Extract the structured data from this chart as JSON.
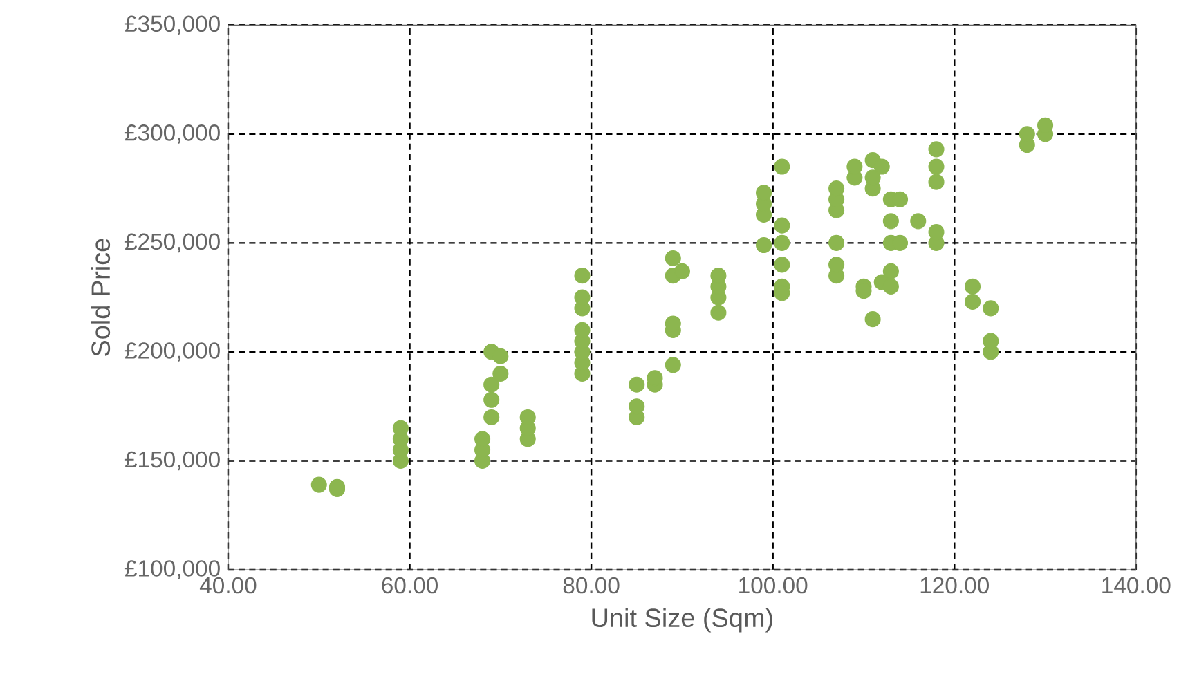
{
  "chart_data": {
    "type": "scatter",
    "xlabel": "Unit Size (Sqm)",
    "ylabel": "Sold Price",
    "xlim": [
      40,
      140
    ],
    "ylim": [
      100000,
      350000
    ],
    "xticks": [
      {
        "value": 40,
        "label": "40.00"
      },
      {
        "value": 60,
        "label": "60.00"
      },
      {
        "value": 80,
        "label": "80.00"
      },
      {
        "value": 100,
        "label": "100.00"
      },
      {
        "value": 120,
        "label": "120.00"
      },
      {
        "value": 140,
        "label": "140.00"
      }
    ],
    "yticks": [
      {
        "value": 100000,
        "label": "£100,000"
      },
      {
        "value": 150000,
        "label": "£150,000"
      },
      {
        "value": 200000,
        "label": "£200,000"
      },
      {
        "value": 250000,
        "label": "£250,000"
      },
      {
        "value": 300000,
        "label": "£300,000"
      },
      {
        "value": 350000,
        "label": "£350,000"
      }
    ],
    "grid": true,
    "marker": "circle",
    "series": [
      {
        "color": "#8cb64f",
        "x": [
          50,
          52,
          52,
          59,
          59,
          59,
          59,
          68,
          68,
          68,
          69,
          69,
          69,
          69,
          70,
          70,
          73,
          73,
          73,
          79,
          79,
          79,
          79,
          79,
          79,
          79,
          79,
          85,
          85,
          85,
          87,
          87,
          89,
          89,
          89,
          89,
          89,
          90,
          94,
          94,
          94,
          94,
          99,
          99,
          99,
          99,
          101,
          101,
          101,
          101,
          101,
          101,
          107,
          107,
          107,
          107,
          107,
          107,
          109,
          109,
          110,
          110,
          111,
          111,
          111,
          111,
          112,
          112,
          113,
          113,
          113,
          113,
          113,
          114,
          114,
          116,
          118,
          118,
          118,
          118,
          118,
          122,
          122,
          124,
          124,
          124,
          128,
          128,
          130,
          130
        ],
        "values": [
          139000,
          137000,
          138000,
          150000,
          155000,
          160000,
          165000,
          150000,
          155000,
          160000,
          170000,
          178000,
          185000,
          200000,
          190000,
          198000,
          160000,
          165000,
          170000,
          190000,
          195000,
          200000,
          205000,
          210000,
          220000,
          225000,
          235000,
          170000,
          175000,
          185000,
          185000,
          188000,
          194000,
          210000,
          213000,
          235000,
          243000,
          237000,
          218000,
          225000,
          230000,
          235000,
          249000,
          263000,
          268000,
          273000,
          285000,
          258000,
          250000,
          240000,
          230000,
          227000,
          235000,
          240000,
          250000,
          265000,
          270000,
          275000,
          280000,
          285000,
          230000,
          228000,
          215000,
          275000,
          280000,
          288000,
          232000,
          285000,
          230000,
          237000,
          250000,
          260000,
          270000,
          270000,
          250000,
          260000,
          250000,
          255000,
          278000,
          285000,
          293000,
          223000,
          230000,
          200000,
          205000,
          220000,
          295000,
          300000,
          300000,
          304000
        ]
      }
    ]
  }
}
